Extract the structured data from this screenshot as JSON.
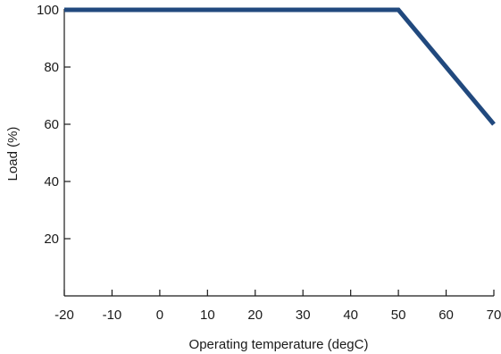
{
  "chart_data": {
    "type": "line",
    "title": "",
    "xlabel": "Operating temperature (degC)",
    "ylabel": "Load (%)",
    "xlim": [
      -20,
      70
    ],
    "ylim": [
      0,
      100
    ],
    "xticks": [
      -20,
      -10,
      0,
      10,
      20,
      30,
      40,
      50,
      60,
      70
    ],
    "yticks": [
      20,
      40,
      60,
      80,
      100
    ],
    "grid": false,
    "series": [
      {
        "x": [
          -20,
          50,
          70
        ],
        "y": [
          100,
          100,
          60
        ],
        "color": "#21497e"
      }
    ]
  }
}
